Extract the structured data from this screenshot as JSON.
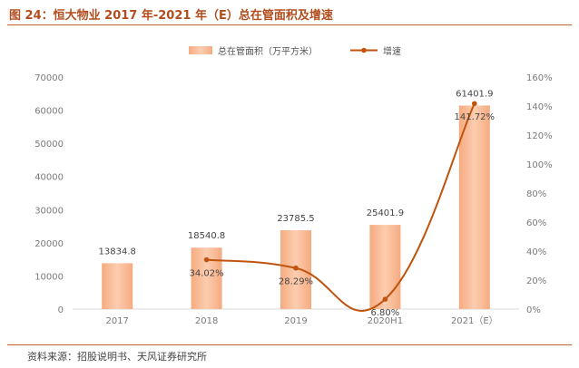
{
  "header": {
    "title": "图 24：恒大物业 2017 年-2021 年（E）总在管面积及增速"
  },
  "footer": {
    "source": "资料来源：招股说明书、天风证券研究所"
  },
  "colors": {
    "title": "#b34d1d",
    "bar_top": "#fbd2b5",
    "bar_bottom": "#f2a072",
    "line": "#c0540e",
    "rule": "#c0662f"
  },
  "chart_data": {
    "type": "bar",
    "categories": [
      "2017",
      "2018",
      "2019",
      "2020H1",
      "2021（E）"
    ],
    "series": [
      {
        "name": "总在管面积（万平方米）",
        "type": "bar",
        "axis": "left",
        "values": [
          13834.8,
          18540.8,
          23785.5,
          25401.9,
          61401.9
        ],
        "labels": [
          "13834.8",
          "18540.8",
          "23785.5",
          "25401.9",
          "61401.9"
        ]
      },
      {
        "name": "增速",
        "type": "line",
        "axis": "right",
        "values": [
          null,
          34.02,
          28.29,
          6.8,
          141.72
        ],
        "labels": [
          "",
          "34.02%",
          "28.29%",
          "6.80%",
          "141.72%"
        ]
      }
    ],
    "y_left": {
      "min": 0,
      "max": 70000,
      "ticks": [
        "0",
        "10000",
        "20000",
        "30000",
        "40000",
        "50000",
        "60000",
        "70000"
      ]
    },
    "y_right": {
      "min": 0,
      "max": 160,
      "ticks": [
        "0%",
        "20%",
        "40%",
        "60%",
        "80%",
        "100%",
        "120%",
        "140%",
        "160%"
      ]
    },
    "legend_position": "top-center",
    "grid": false
  }
}
